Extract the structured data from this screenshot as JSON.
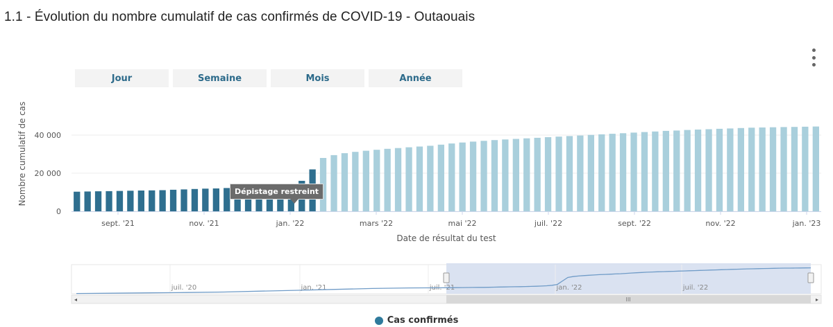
{
  "title": "1.1 - Évolution du nombre cumulatif de cas confirmés de COVID-19 - Outaouais",
  "range_buttons": [
    "Jour",
    "Semaine",
    "Mois",
    "Année"
  ],
  "annotation": "Dépistage restreint",
  "legend": {
    "label": "Cas confirmés"
  },
  "colors": {
    "dark_bar": "#2f6f8f",
    "light_bar": "#a9cfdc",
    "navigator_line": "#6f9bc7",
    "navigator_selection": "#d6dff0"
  },
  "chart_data": {
    "type": "bar",
    "title": "1.1 - Évolution du nombre cumulatif de cas confirmés de COVID-19 - Outaouais",
    "xlabel": "Date de résultat du test",
    "ylabel": "Nombre cumulatif de cas",
    "ylim": [
      0,
      60000
    ],
    "y_ticks": [
      "0",
      "20 000",
      "40 000"
    ],
    "x_ticks": [
      "sept. '21",
      "nov. '21",
      "janv. '22",
      "mars '22",
      "mai '22",
      "juil. '22",
      "sept. '22",
      "nov. '22",
      "janv. '23"
    ],
    "x_ticks_display": [
      "sept. '21",
      "nov. '21",
      "jan. '22",
      "mars '22",
      "mai '22",
      "juil. '22",
      "sept. '22",
      "nov. '22",
      "jan. '23"
    ],
    "legend_position": "bottom-center",
    "grid": true,
    "series": [
      {
        "name": "Cas confirmés",
        "values": [
          10300,
          10400,
          10500,
          10600,
          10700,
          10800,
          10900,
          11000,
          11100,
          11300,
          11500,
          11700,
          11900,
          12000,
          12200,
          12400,
          12600,
          12900,
          13200,
          13700,
          14500,
          16000,
          22000,
          28000,
          29500,
          30500,
          31200,
          31800,
          32300,
          32800,
          33200,
          33600,
          34000,
          34400,
          35000,
          35600,
          36100,
          36600,
          37000,
          37400,
          37700,
          38000,
          38300,
          38600,
          38900,
          39200,
          39500,
          39800,
          40100,
          40400,
          40700,
          41000,
          41300,
          41600,
          41900,
          42200,
          42400,
          42700,
          42900,
          43100,
          43300,
          43500,
          43700,
          43900,
          44000,
          44100,
          44200,
          44300,
          44400,
          44500
        ]
      }
    ],
    "restricted_testing_start_index": 23,
    "navigator": {
      "x_ticks": [
        "juil. '20",
        "janv. '21",
        "juil. '21",
        "janv. '22",
        "juil. '22"
      ],
      "x_ticks_display": [
        "juil. '20",
        "jan. '21",
        "juil. '21",
        "jan. '22",
        "juil. '22"
      ]
    }
  }
}
